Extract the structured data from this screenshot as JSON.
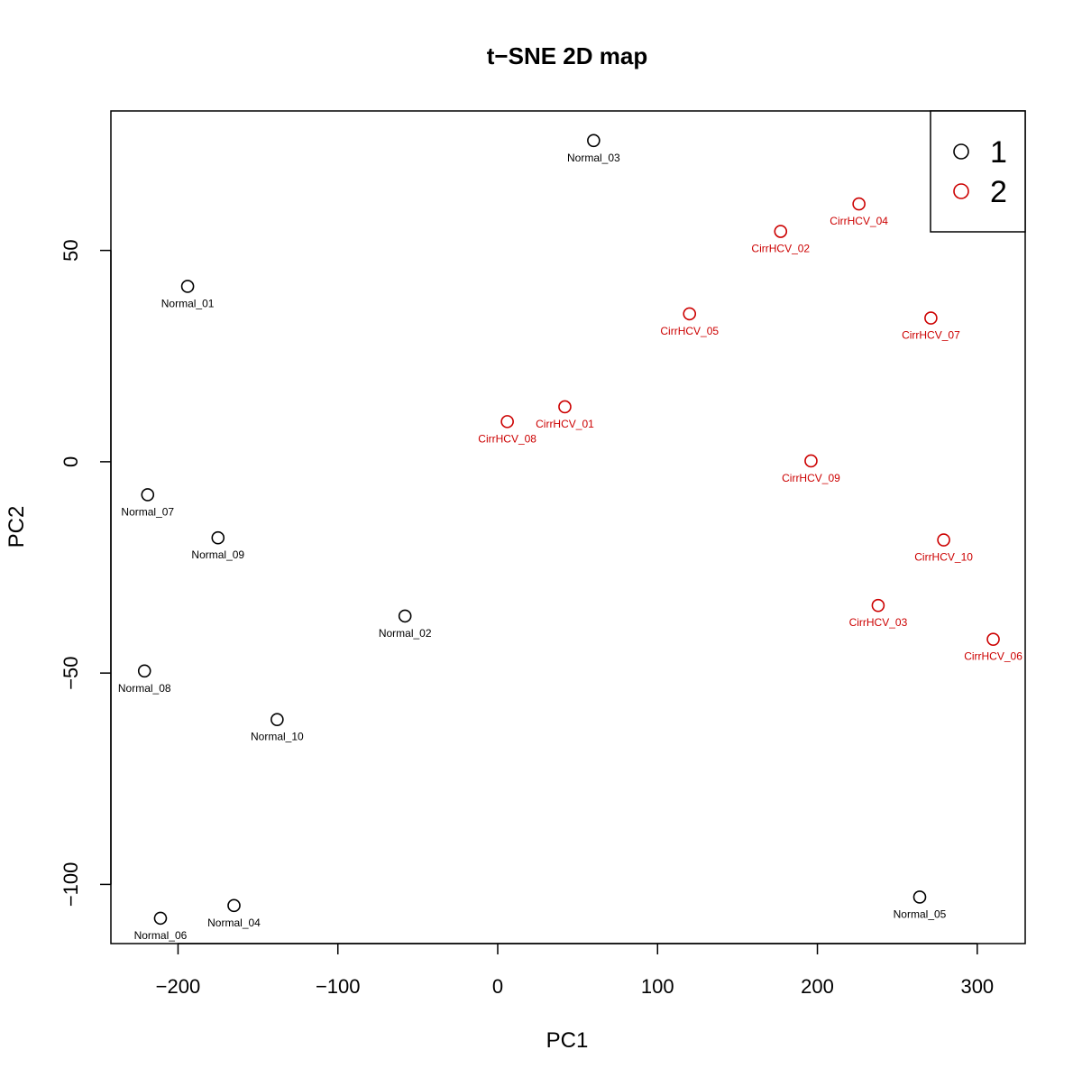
{
  "chart_data": {
    "type": "scatter",
    "title": "t−SNE 2D map",
    "xlabel": "PC1",
    "ylabel": "PC2",
    "xlim": [
      -242,
      330
    ],
    "ylim": [
      -114,
      83
    ],
    "xticks": [
      -200,
      -100,
      0,
      100,
      200,
      300
    ],
    "xtick_labels": [
      "−200",
      "−100",
      "0",
      "100",
      "200",
      "300"
    ],
    "yticks": [
      -100,
      -50,
      0,
      50
    ],
    "ytick_labels": [
      "−100",
      "−50",
      "0",
      "50"
    ],
    "grid": false,
    "legend_position": "top-right",
    "series": [
      {
        "name": "1",
        "color": "#000000",
        "points": [
          {
            "x": -194,
            "y": 41.5,
            "label": "Normal_01"
          },
          {
            "x": -58,
            "y": -36.5,
            "label": "Normal_02"
          },
          {
            "x": 60,
            "y": 76,
            "label": "Normal_03"
          },
          {
            "x": -165,
            "y": -105,
            "label": "Normal_04"
          },
          {
            "x": 264,
            "y": -103,
            "label": "Normal_05"
          },
          {
            "x": -211,
            "y": -108,
            "label": "Normal_06"
          },
          {
            "x": -219,
            "y": -7.8,
            "label": "Normal_07"
          },
          {
            "x": -221,
            "y": -49.5,
            "label": "Normal_08"
          },
          {
            "x": -175,
            "y": -18,
            "label": "Normal_09"
          },
          {
            "x": -138,
            "y": -61,
            "label": "Normal_10"
          }
        ]
      },
      {
        "name": "2",
        "color": "#cc0000",
        "points": [
          {
            "x": 42,
            "y": 13,
            "label": "CirrHCV_01"
          },
          {
            "x": 177,
            "y": 54.5,
            "label": "CirrHCV_02"
          },
          {
            "x": 238,
            "y": -34,
            "label": "CirrHCV_03"
          },
          {
            "x": 226,
            "y": 61,
            "label": "CirrHCV_04"
          },
          {
            "x": 120,
            "y": 35,
            "label": "CirrHCV_05"
          },
          {
            "x": 310,
            "y": -42,
            "label": "CirrHCV_06"
          },
          {
            "x": 271,
            "y": 34,
            "label": "CirrHCV_07"
          },
          {
            "x": 6,
            "y": 9.5,
            "label": "CirrHCV_08"
          },
          {
            "x": 196,
            "y": 0.2,
            "label": "CirrHCV_09"
          },
          {
            "x": 279,
            "y": -18.5,
            "label": "CirrHCV_10"
          }
        ]
      }
    ]
  }
}
